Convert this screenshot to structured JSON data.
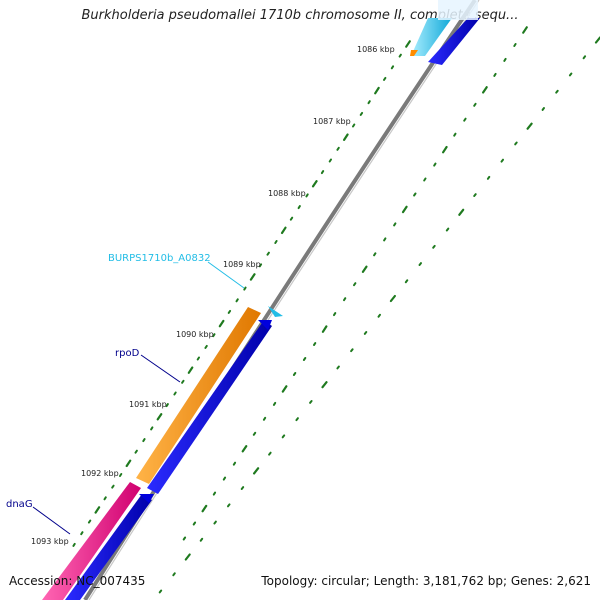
{
  "title": "Burkholderia pseudomallei 1710b chromosome II, complete sequ...",
  "footer": {
    "accession_label": "Accession: NC_007435",
    "summary": "Topology: circular; Length: 3,181,762 bp; Genes: 2,621"
  },
  "ticks": [
    {
      "label": "1086 kbp"
    },
    {
      "label": "1087 kbp"
    },
    {
      "label": "1088 kbp"
    },
    {
      "label": "1089 kbp"
    },
    {
      "label": "1090 kbp"
    },
    {
      "label": "1091 kbp"
    },
    {
      "label": "1092 kbp"
    },
    {
      "label": "1093 kbp"
    }
  ],
  "gene_labels": [
    {
      "name": "BURPS1710b_A0832",
      "color": "#22bde6"
    },
    {
      "name": "rpoD",
      "color": "#00008b"
    },
    {
      "name": "dnaG",
      "color": "#00008b"
    }
  ],
  "colors": {
    "backbone": "#808080",
    "ticks": "#1f7a1f",
    "cds_blue": "#0000ee",
    "rpoD_orange": "#ff8c00",
    "dnaG_pink": "#ff1493",
    "cyan_gene": "#22bde6"
  }
}
